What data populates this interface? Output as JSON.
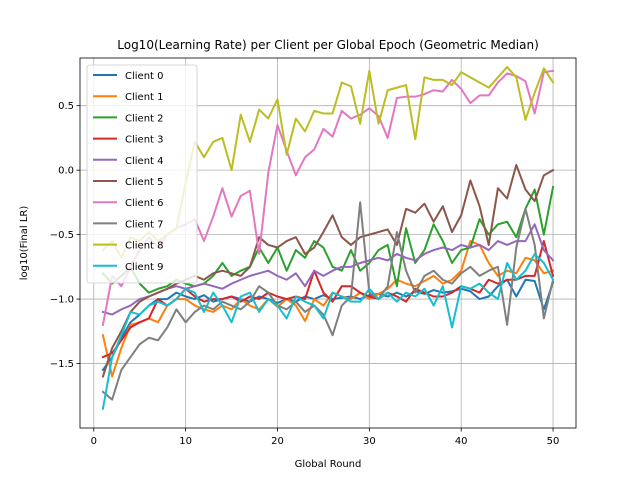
{
  "chart_data": {
    "type": "line",
    "title": "Log10(Learning Rate) per Client per Global Epoch (Geometric Median)",
    "xlabel": "Global Round",
    "ylabel": "log10(Final LR)",
    "xlim": [
      -1.5,
      52.5
    ],
    "ylim": [
      -2.0,
      0.87
    ],
    "xticks": [
      0,
      10,
      20,
      30,
      40,
      50
    ],
    "yticks": [
      -1.5,
      -1.0,
      -0.5,
      0.0,
      0.5
    ],
    "xtick_labels": [
      "0",
      "10",
      "20",
      "30",
      "40",
      "50"
    ],
    "ytick_labels": [
      "−1.5",
      "−1.0",
      "−0.5",
      "0.0",
      "0.5"
    ],
    "grid": true,
    "legend_position": "upper-left",
    "x": [
      1,
      2,
      3,
      4,
      5,
      6,
      7,
      8,
      9,
      10,
      11,
      12,
      13,
      14,
      15,
      16,
      17,
      18,
      19,
      20,
      21,
      22,
      23,
      24,
      25,
      26,
      27,
      28,
      29,
      30,
      31,
      32,
      33,
      34,
      35,
      36,
      37,
      38,
      39,
      40,
      41,
      42,
      43,
      44,
      45,
      46,
      47,
      48,
      49,
      50
    ],
    "series": [
      {
        "name": "Client 0",
        "color": "#1f77b4",
        "values": [
          -1.55,
          -1.45,
          -1.3,
          -1.18,
          -1.12,
          -1.05,
          -1.0,
          -1.0,
          -0.95,
          -0.98,
          -1.0,
          -0.97,
          -1.02,
          -1.0,
          -0.98,
          -1.0,
          -1.02,
          -0.98,
          -1.0,
          -1.03,
          -1.0,
          -1.02,
          -0.98,
          -1.0,
          -0.97,
          -1.0,
          -0.99,
          -0.98,
          -1.0,
          -0.97,
          -0.96,
          -0.98,
          -0.95,
          -0.98,
          -0.94,
          -0.96,
          -0.93,
          -0.95,
          -0.94,
          -0.92,
          -0.94,
          -1.0,
          -0.98,
          -0.9,
          -0.85,
          -0.98,
          -0.85,
          -0.86,
          -1.08,
          -0.87
        ]
      },
      {
        "name": "Client 1",
        "color": "#ff7f0e",
        "values": [
          -1.28,
          -1.6,
          -1.38,
          -1.2,
          -1.18,
          -1.15,
          -1.18,
          -1.05,
          -1.0,
          -1.0,
          -1.05,
          -1.08,
          -1.1,
          -1.05,
          -1.08,
          -1.0,
          -1.05,
          -1.08,
          -1.0,
          -1.06,
          -1.0,
          -1.05,
          -1.17,
          -1.0,
          -1.05,
          -0.95,
          -0.98,
          -1.0,
          -0.95,
          -1.0,
          -0.96,
          -0.92,
          -0.85,
          -0.88,
          -0.9,
          -0.86,
          -0.82,
          -0.88,
          -0.85,
          -0.78,
          -0.55,
          -0.58,
          -0.72,
          -0.82,
          -0.78,
          -0.8,
          -0.68,
          -0.7,
          -0.8,
          -0.78
        ]
      },
      {
        "name": "Client 2",
        "color": "#2ca02c",
        "values": [
          -0.8,
          -0.88,
          -0.82,
          -0.75,
          -0.88,
          -0.95,
          -0.92,
          -0.9,
          -0.85,
          -0.88,
          -0.9,
          -0.88,
          -0.82,
          -0.72,
          -0.82,
          -0.78,
          -0.75,
          -0.6,
          -0.72,
          -0.6,
          -0.78,
          -0.62,
          -0.68,
          -0.55,
          -0.6,
          -0.75,
          -0.78,
          -0.62,
          -0.78,
          -0.72,
          -0.62,
          -0.58,
          -0.9,
          -0.45,
          -0.72,
          -0.62,
          -0.42,
          -0.55,
          -0.72,
          -0.62,
          -0.6,
          -0.38,
          -0.5,
          -0.42,
          -0.4,
          -0.52,
          -0.3,
          -0.15,
          -0.5,
          -0.13
        ]
      },
      {
        "name": "Client 3",
        "color": "#d62728",
        "values": [
          -1.45,
          -1.42,
          -1.32,
          -1.22,
          -1.18,
          -1.15,
          -1.0,
          -1.05,
          -1.0,
          -0.92,
          -0.98,
          -1.02,
          -1.0,
          -1.0,
          -0.98,
          -1.02,
          -0.98,
          -1.0,
          -0.95,
          -0.98,
          -1.0,
          -0.98,
          -1.0,
          -0.78,
          -0.95,
          -1.02,
          -0.9,
          -0.9,
          -0.95,
          -0.98,
          -1.0,
          -0.95,
          -0.98,
          -1.02,
          -0.92,
          -0.95,
          -0.98,
          -0.98,
          -0.95,
          -0.9,
          -0.92,
          -0.95,
          -0.85,
          -0.88,
          -0.85,
          -0.85,
          -0.82,
          -0.82,
          -0.55,
          -0.82
        ]
      },
      {
        "name": "Client 4",
        "color": "#9467bd",
        "values": [
          -1.1,
          -1.12,
          -1.08,
          -1.05,
          -1.0,
          -0.98,
          -0.95,
          -0.92,
          -0.9,
          -0.92,
          -0.9,
          -0.88,
          -0.9,
          -0.92,
          -0.88,
          -0.85,
          -0.82,
          -0.8,
          -0.78,
          -0.82,
          -0.85,
          -0.8,
          -0.9,
          -0.78,
          -0.82,
          -0.78,
          -0.75,
          -0.75,
          -0.72,
          -0.7,
          -0.68,
          -0.7,
          -0.65,
          -0.68,
          -0.7,
          -0.65,
          -0.62,
          -0.6,
          -0.62,
          -0.58,
          -0.6,
          -0.58,
          -0.62,
          -0.55,
          -0.58,
          -0.55,
          -0.55,
          -0.42,
          -0.62,
          -0.7
        ]
      },
      {
        "name": "Client 5",
        "color": "#8c564b",
        "values": [
          -1.6,
          -1.38,
          -1.25,
          -1.1,
          -1.02,
          -0.98,
          -0.95,
          -0.92,
          -0.88,
          -0.85,
          -0.82,
          -0.85,
          -0.8,
          -0.78,
          -0.8,
          -0.82,
          -0.75,
          -0.52,
          -0.58,
          -0.6,
          -0.55,
          -0.52,
          -0.65,
          -0.6,
          -0.48,
          -0.35,
          -0.52,
          -0.58,
          -0.52,
          -0.5,
          -0.48,
          -0.46,
          -0.58,
          -0.3,
          -0.33,
          -0.26,
          -0.4,
          -0.28,
          -0.48,
          -0.35,
          -0.08,
          -0.28,
          -0.58,
          -0.14,
          -0.22,
          0.04,
          -0.15,
          -0.24,
          -0.04,
          0.0
        ]
      },
      {
        "name": "Client 6",
        "color": "#e377c2",
        "values": [
          -1.2,
          -0.82,
          -0.9,
          -0.75,
          -0.62,
          -0.52,
          -0.6,
          -0.5,
          -0.45,
          -0.42,
          -0.38,
          -0.55,
          -0.36,
          -0.14,
          -0.36,
          -0.2,
          -0.16,
          -0.65,
          -0.02,
          0.35,
          0.15,
          -0.04,
          0.1,
          0.16,
          0.32,
          0.26,
          0.46,
          0.4,
          0.43,
          0.48,
          0.42,
          0.25,
          0.56,
          0.57,
          0.57,
          0.59,
          0.62,
          0.61,
          0.7,
          0.63,
          0.52,
          0.58,
          0.58,
          0.68,
          0.75,
          0.73,
          0.69,
          0.44,
          0.76,
          0.77
        ]
      },
      {
        "name": "Client 7",
        "color": "#7f7f7f",
        "values": [
          -1.72,
          -1.78,
          -1.55,
          -1.45,
          -1.35,
          -1.3,
          -1.32,
          -1.22,
          -1.08,
          -1.18,
          -1.1,
          -1.05,
          -1.08,
          -1.02,
          -1.05,
          -1.08,
          -1.02,
          -0.9,
          -0.95,
          -1.05,
          -1.08,
          -1.02,
          -1.1,
          -1.05,
          -1.12,
          -1.28,
          -1.05,
          -0.98,
          -0.25,
          -0.95,
          -1.0,
          -0.9,
          -0.48,
          -0.78,
          -0.95,
          -0.82,
          -0.78,
          -0.85,
          -0.88,
          -0.8,
          -0.75,
          -0.82,
          -0.78,
          -0.75,
          -1.2,
          -0.6,
          -0.3,
          -0.58,
          -1.15,
          -0.85
        ]
      },
      {
        "name": "Client 8",
        "color": "#bcbd22",
        "values": [
          -0.62,
          -0.55,
          -0.68,
          -0.52,
          -0.55,
          -0.48,
          -0.55,
          -0.5,
          -0.45,
          -0.1,
          0.22,
          0.1,
          0.22,
          0.25,
          0.0,
          0.43,
          0.22,
          0.47,
          0.4,
          0.55,
          0.12,
          0.4,
          0.3,
          0.46,
          0.44,
          0.44,
          0.68,
          0.65,
          0.36,
          0.77,
          0.36,
          0.62,
          0.64,
          0.66,
          0.24,
          0.72,
          0.7,
          0.7,
          0.66,
          0.76,
          0.72,
          0.68,
          0.64,
          0.72,
          0.8,
          0.72,
          0.39,
          0.6,
          0.79,
          0.68
        ]
      },
      {
        "name": "Client 9",
        "color": "#17becf",
        "values": [
          -1.85,
          -1.45,
          -1.28,
          -1.1,
          -1.12,
          -1.05,
          -1.02,
          -1.05,
          -1.0,
          -0.92,
          -0.95,
          -1.1,
          -0.95,
          -1.05,
          -1.18,
          -0.98,
          -0.95,
          -1.1,
          -1.0,
          -1.05,
          -1.15,
          -0.98,
          -1.02,
          -1.05,
          -1.15,
          -0.95,
          -0.98,
          -1.02,
          -1.02,
          -0.92,
          -1.0,
          -0.95,
          -1.02,
          -0.95,
          -0.98,
          -0.92,
          -1.05,
          -0.9,
          -1.22,
          -0.9,
          -0.92,
          -0.88,
          -0.95,
          -1.0,
          -0.72,
          -0.85,
          -0.78,
          -0.65,
          -0.72,
          -0.85
        ]
      }
    ]
  }
}
